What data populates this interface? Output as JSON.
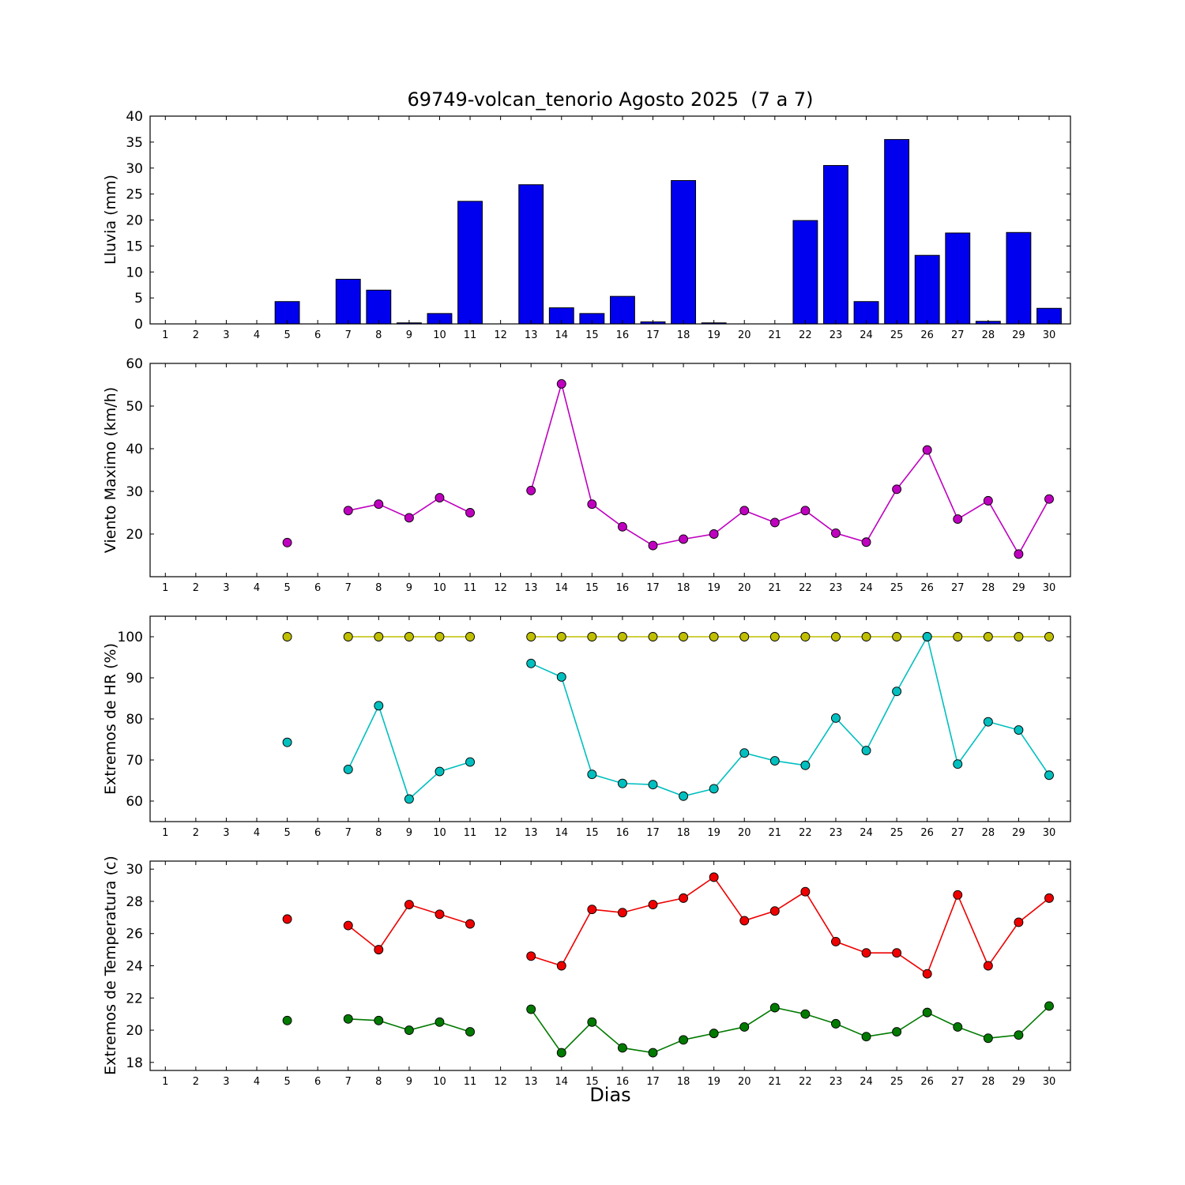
{
  "figure": {
    "title": "69749-volcan_tenorio Agosto 2025  (7 a 7)",
    "xlabel": "Dias"
  },
  "chart_data": [
    {
      "type": "bar",
      "ylabel": "Lluvia (mm)",
      "color": "#0000ee",
      "categories": [
        1,
        2,
        3,
        4,
        5,
        6,
        7,
        8,
        9,
        10,
        11,
        12,
        13,
        14,
        15,
        16,
        17,
        18,
        19,
        20,
        21,
        22,
        23,
        24,
        25,
        26,
        27,
        28,
        29,
        30
      ],
      "values": [
        0,
        0,
        0,
        0,
        4.3,
        0,
        8.6,
        6.5,
        0.2,
        2.0,
        23.6,
        0,
        26.8,
        3.1,
        2.0,
        5.3,
        0.4,
        27.6,
        0.2,
        0,
        0,
        19.9,
        30.5,
        4.3,
        35.5,
        13.2,
        17.5,
        0.5,
        17.6,
        3.0
      ],
      "bar_width": 0.8,
      "xlim": [
        0.5,
        30.7
      ],
      "ylim": [
        0,
        40
      ],
      "xticks": [
        1,
        2,
        3,
        4,
        5,
        6,
        7,
        8,
        9,
        10,
        11,
        12,
        13,
        14,
        15,
        16,
        17,
        18,
        19,
        20,
        21,
        22,
        23,
        24,
        25,
        26,
        27,
        28,
        29,
        30
      ],
      "yticks": [
        0,
        5,
        10,
        15,
        20,
        25,
        30,
        35,
        40
      ],
      "grid": false
    },
    {
      "type": "line",
      "ylabel": "Viento Maximo (km/h)",
      "series": [
        {
          "name": "viento-maximo",
          "color": "#bf00bf",
          "points": [
            [
              5,
              18
            ],
            [
              7,
              25.5
            ],
            [
              8,
              27
            ],
            [
              9,
              23.8
            ],
            [
              10,
              28.5
            ],
            [
              11,
              25
            ],
            [
              13,
              30.2
            ],
            [
              14,
              55.2
            ],
            [
              15,
              27
            ],
            [
              16,
              21.7
            ],
            [
              17,
              17.3
            ],
            [
              18,
              18.8
            ],
            [
              19,
              20
            ],
            [
              20,
              25.5
            ],
            [
              21,
              22.7
            ],
            [
              22,
              25.5
            ],
            [
              23,
              20.2
            ],
            [
              24,
              18.1
            ],
            [
              25,
              30.5
            ],
            [
              26,
              39.7
            ],
            [
              27,
              23.5
            ],
            [
              28,
              27.8
            ],
            [
              29,
              15.3
            ],
            [
              30,
              28.2
            ]
          ]
        }
      ],
      "xlim": [
        0.5,
        30.7
      ],
      "ylim": [
        10,
        60
      ],
      "xticks": [
        1,
        2,
        3,
        4,
        5,
        6,
        7,
        8,
        9,
        10,
        11,
        12,
        13,
        14,
        15,
        16,
        17,
        18,
        19,
        20,
        21,
        22,
        23,
        24,
        25,
        26,
        27,
        28,
        29,
        30
      ],
      "yticks": [
        20,
        30,
        40,
        50,
        60
      ],
      "grid": false
    },
    {
      "type": "line",
      "ylabel": "Extremos de HR (%)",
      "series": [
        {
          "name": "hr-maximo",
          "color": "#bfbf00",
          "points": [
            [
              5,
              100
            ],
            [
              7,
              100
            ],
            [
              8,
              100
            ],
            [
              9,
              100
            ],
            [
              10,
              100
            ],
            [
              11,
              100
            ],
            [
              13,
              100
            ],
            [
              14,
              100
            ],
            [
              15,
              100
            ],
            [
              16,
              100
            ],
            [
              17,
              100
            ],
            [
              18,
              100
            ],
            [
              19,
              100
            ],
            [
              20,
              100
            ],
            [
              21,
              100
            ],
            [
              22,
              100
            ],
            [
              23,
              100
            ],
            [
              24,
              100
            ],
            [
              25,
              100
            ],
            [
              26,
              100
            ],
            [
              27,
              100
            ],
            [
              28,
              100
            ],
            [
              29,
              100
            ],
            [
              30,
              100
            ]
          ]
        },
        {
          "name": "hr-minimo",
          "color": "#00bfbf",
          "points": [
            [
              5,
              74.3
            ],
            [
              7,
              67.7
            ],
            [
              8,
              83.2
            ],
            [
              9,
              60.5
            ],
            [
              10,
              67.2
            ],
            [
              11,
              69.5
            ],
            [
              13,
              93.5
            ],
            [
              14,
              90.2
            ],
            [
              15,
              66.5
            ],
            [
              16,
              64.3
            ],
            [
              17,
              64.0
            ],
            [
              18,
              61.2
            ],
            [
              19,
              63.0
            ],
            [
              20,
              71.7
            ],
            [
              21,
              69.8
            ],
            [
              22,
              68.7
            ],
            [
              23,
              80.2
            ],
            [
              24,
              72.3
            ],
            [
              25,
              86.7
            ],
            [
              26,
              100
            ],
            [
              27,
              69.0
            ],
            [
              28,
              79.3
            ],
            [
              29,
              77.3
            ],
            [
              30,
              66.3
            ]
          ]
        }
      ],
      "xlim": [
        0.5,
        30.7
      ],
      "ylim": [
        55,
        105
      ],
      "xticks": [
        1,
        2,
        3,
        4,
        5,
        6,
        7,
        8,
        9,
        10,
        11,
        12,
        13,
        14,
        15,
        16,
        17,
        18,
        19,
        20,
        21,
        22,
        23,
        24,
        25,
        26,
        27,
        28,
        29,
        30
      ],
      "yticks": [
        60,
        70,
        80,
        90,
        100
      ],
      "grid": false
    },
    {
      "type": "line",
      "ylabel": "Extremos de Temperatura (c)",
      "series": [
        {
          "name": "temperatura-maxima",
          "color": "#ee0000",
          "points": [
            [
              5,
              26.9
            ],
            [
              7,
              26.5
            ],
            [
              8,
              25.0
            ],
            [
              9,
              27.8
            ],
            [
              10,
              27.2
            ],
            [
              11,
              26.6
            ],
            [
              13,
              24.6
            ],
            [
              14,
              24.0
            ],
            [
              15,
              27.5
            ],
            [
              16,
              27.3
            ],
            [
              17,
              27.8
            ],
            [
              18,
              28.2
            ],
            [
              19,
              29.5
            ],
            [
              20,
              26.8
            ],
            [
              21,
              27.4
            ],
            [
              22,
              28.6
            ],
            [
              23,
              25.5
            ],
            [
              24,
              24.8
            ],
            [
              25,
              24.8
            ],
            [
              26,
              23.5
            ],
            [
              27,
              28.4
            ],
            [
              28,
              24.0
            ],
            [
              29,
              26.7
            ],
            [
              30,
              28.2
            ]
          ]
        },
        {
          "name": "temperatura-minima",
          "color": "#007a00",
          "points": [
            [
              5,
              20.6
            ],
            [
              7,
              20.7
            ],
            [
              8,
              20.6
            ],
            [
              9,
              20.0
            ],
            [
              10,
              20.5
            ],
            [
              11,
              19.9
            ],
            [
              13,
              21.3
            ],
            [
              14,
              18.6
            ],
            [
              15,
              20.5
            ],
            [
              16,
              18.9
            ],
            [
              17,
              18.6
            ],
            [
              18,
              19.4
            ],
            [
              19,
              19.8
            ],
            [
              20,
              20.2
            ],
            [
              21,
              21.4
            ],
            [
              22,
              21.0
            ],
            [
              23,
              20.4
            ],
            [
              24,
              19.6
            ],
            [
              25,
              19.9
            ],
            [
              26,
              21.1
            ],
            [
              27,
              20.2
            ],
            [
              28,
              19.5
            ],
            [
              29,
              19.7
            ],
            [
              30,
              21.5
            ]
          ]
        }
      ],
      "xlim": [
        0.5,
        30.7
      ],
      "ylim": [
        17.5,
        30.5
      ],
      "xticks": [
        1,
        2,
        3,
        4,
        5,
        6,
        7,
        8,
        9,
        10,
        11,
        12,
        13,
        14,
        15,
        16,
        17,
        18,
        19,
        20,
        21,
        22,
        23,
        24,
        25,
        26,
        27,
        28,
        29,
        30
      ],
      "yticks": [
        18,
        20,
        22,
        24,
        26,
        28,
        30
      ],
      "grid": false
    }
  ]
}
